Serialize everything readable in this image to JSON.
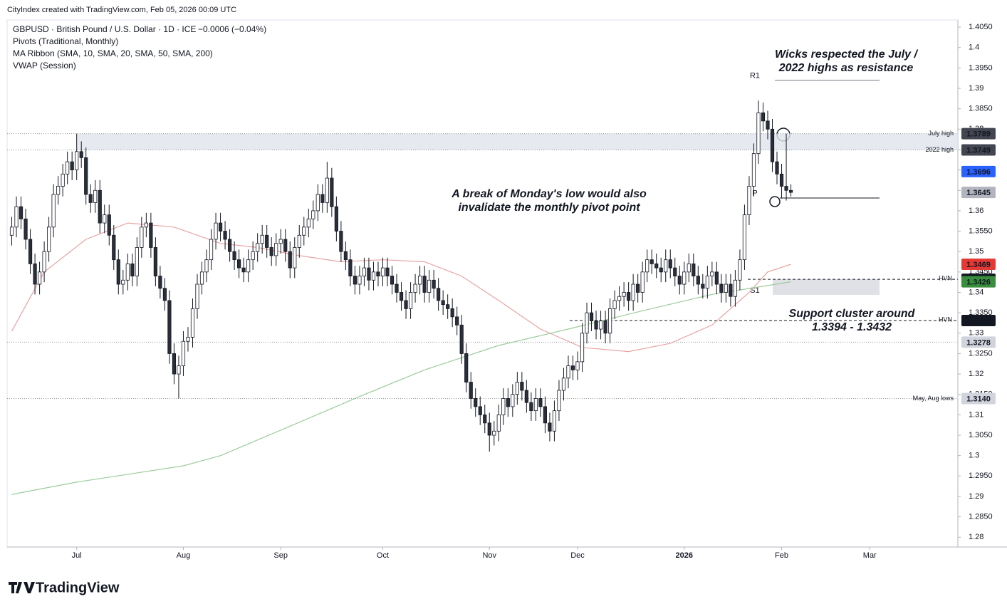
{
  "header": "CityIndex created with TradingView.com, Feb 05, 2026 00:09 UTC",
  "footer": "TradingView",
  "chart_data": {
    "type": "candlestick",
    "title": "GBPUSD · British Pound / U.S. Dollar · 1D · ICE",
    "change": "−0.0006 (−0.04%)",
    "indicators": [
      "Pivots (Traditional, Monthly)",
      "MA Ribbon (SMA, 10, SMA, 20, SMA, 50, SMA, 200)",
      "VWAP (Session)"
    ],
    "up_color": "#ffffff",
    "down_color": "#2a2e39",
    "border_color": "#131722",
    "open": [
      1.354,
      1.356,
      1.361,
      1.358,
      1.353,
      1.347,
      1.342,
      1.345,
      1.35,
      1.356,
      1.364,
      1.366,
      1.369,
      1.372,
      1.37,
      1.3745,
      1.373,
      1.364,
      1.362,
      1.365,
      1.357,
      1.359,
      1.354,
      1.348,
      1.342,
      1.343,
      1.347,
      1.344,
      1.351,
      1.356,
      1.357,
      1.351,
      1.344,
      1.341,
      1.338,
      1.325,
      1.32,
      1.322,
      1.328,
      1.329,
      1.336,
      1.342,
      1.345,
      1.348,
      1.353,
      1.357,
      1.355,
      1.353,
      1.35,
      1.348,
      1.346,
      1.345,
      1.348,
      1.35,
      1.352,
      1.354,
      1.351,
      1.349,
      1.352,
      1.353,
      1.35,
      1.346,
      1.351,
      1.354,
      1.356,
      1.358,
      1.36,
      1.364,
      1.362,
      1.368,
      1.361,
      1.355,
      1.35,
      1.348,
      1.344,
      1.342,
      1.344,
      1.346,
      1.343,
      1.345,
      1.344,
      1.346,
      1.344,
      1.342,
      1.34,
      1.338,
      1.336,
      1.34,
      1.342,
      1.344,
      1.34,
      1.343,
      1.341,
      1.338,
      1.337,
      1.336,
      1.334,
      1.332,
      1.325,
      1.318,
      1.314,
      1.312,
      1.31,
      1.308,
      1.305,
      1.306,
      1.31,
      1.314,
      1.312,
      1.315,
      1.318,
      1.316,
      1.313,
      1.311,
      1.314,
      1.312,
      1.308,
      1.306,
      1.311,
      1.316,
      1.319,
      1.322,
      1.321,
      1.323,
      1.33,
      1.335,
      1.333,
      1.331,
      1.333,
      1.33,
      1.336,
      1.338,
      1.339,
      1.34,
      1.338,
      1.342,
      1.34,
      1.345,
      1.348,
      1.347,
      1.346,
      1.345,
      1.348,
      1.346,
      1.344,
      1.342,
      1.345,
      1.347,
      1.344,
      1.342,
      1.341,
      1.344,
      1.345,
      1.342,
      1.34,
      1.342,
      1.339,
      1.343,
      1.348,
      1.359,
      1.366,
      1.374,
      1.384,
      1.382,
      1.38,
      1.372,
      1.369,
      1.366,
      1.365
    ],
    "high": [
      1.3585,
      1.3635,
      1.3635,
      1.3605,
      1.3555,
      1.3495,
      1.3475,
      1.3525,
      1.3585,
      1.3665,
      1.3685,
      1.3715,
      1.3745,
      1.3745,
      1.3789,
      1.377,
      1.3755,
      1.3665,
      1.3675,
      1.3675,
      1.3615,
      1.3615,
      1.3565,
      1.3505,
      1.3455,
      1.3495,
      1.3495,
      1.3535,
      1.3585,
      1.3595,
      1.3595,
      1.3535,
      1.3465,
      1.3435,
      1.3405,
      1.3275,
      1.3245,
      1.3305,
      1.3315,
      1.3385,
      1.3445,
      1.3475,
      1.3505,
      1.3555,
      1.3595,
      1.3595,
      1.3575,
      1.3555,
      1.3525,
      1.3505,
      1.3485,
      1.3505,
      1.3525,
      1.3545,
      1.3565,
      1.3565,
      1.3535,
      1.3545,
      1.3555,
      1.3555,
      1.3525,
      1.3535,
      1.3565,
      1.3585,
      1.3605,
      1.3625,
      1.3665,
      1.3665,
      1.372,
      1.3705,
      1.3635,
      1.3575,
      1.3525,
      1.3505,
      1.3465,
      1.3465,
      1.3485,
      1.3485,
      1.3475,
      1.3475,
      1.3485,
      1.3485,
      1.3465,
      1.3445,
      1.3425,
      1.3405,
      1.3425,
      1.3445,
      1.3465,
      1.3465,
      1.3455,
      1.3455,
      1.3435,
      1.3405,
      1.3395,
      1.3385,
      1.3365,
      1.3345,
      1.3275,
      1.3205,
      1.3165,
      1.3145,
      1.3125,
      1.3105,
      1.3085,
      1.3125,
      1.3165,
      1.3165,
      1.3175,
      1.3205,
      1.3205,
      1.3185,
      1.3155,
      1.3165,
      1.3165,
      1.3145,
      1.3105,
      1.3135,
      1.3185,
      1.3215,
      1.3245,
      1.3245,
      1.3255,
      1.3325,
      1.3375,
      1.3375,
      1.3355,
      1.3355,
      1.3355,
      1.3385,
      1.3405,
      1.3415,
      1.3425,
      1.3425,
      1.3445,
      1.3445,
      1.3475,
      1.3505,
      1.3505,
      1.3495,
      1.3485,
      1.3505,
      1.3505,
      1.3485,
      1.3465,
      1.3475,
      1.3495,
      1.3495,
      1.3465,
      1.3445,
      1.3465,
      1.3475,
      1.3475,
      1.3445,
      1.3445,
      1.3445,
      1.3455,
      1.3505,
      1.3615,
      1.3685,
      1.3765,
      1.387,
      1.3865,
      1.3845,
      1.3825,
      1.3745,
      1.3715,
      1.3789,
      1.3665
    ],
    "low": [
      1.3515,
      1.3535,
      1.3555,
      1.3505,
      1.3445,
      1.3395,
      1.3395,
      1.3425,
      1.3475,
      1.3535,
      1.3615,
      1.3635,
      1.3665,
      1.3675,
      1.3675,
      1.3705,
      1.3615,
      1.3595,
      1.3595,
      1.3545,
      1.3545,
      1.3515,
      1.3455,
      1.3395,
      1.3395,
      1.3405,
      1.3415,
      1.3415,
      1.3485,
      1.3535,
      1.3485,
      1.3415,
      1.3385,
      1.3355,
      1.3225,
      1.3175,
      1.314,
      1.3195,
      1.3255,
      1.3265,
      1.3335,
      1.3395,
      1.3425,
      1.3455,
      1.3505,
      1.3525,
      1.3505,
      1.3475,
      1.3455,
      1.3435,
      1.3425,
      1.3425,
      1.3455,
      1.3475,
      1.3495,
      1.3485,
      1.3465,
      1.3465,
      1.3495,
      1.3475,
      1.3435,
      1.3435,
      1.3485,
      1.3515,
      1.3535,
      1.3555,
      1.3575,
      1.3595,
      1.3595,
      1.3585,
      1.3525,
      1.3475,
      1.3455,
      1.3415,
      1.3395,
      1.3395,
      1.3415,
      1.3405,
      1.3405,
      1.3415,
      1.3415,
      1.3415,
      1.3395,
      1.3375,
      1.3355,
      1.3335,
      1.3335,
      1.3375,
      1.3395,
      1.3375,
      1.3375,
      1.3385,
      1.3355,
      1.3345,
      1.3335,
      1.3315,
      1.3295,
      1.3225,
      1.3155,
      1.3115,
      1.3095,
      1.3075,
      1.3055,
      1.301,
      1.3025,
      1.3035,
      1.3075,
      1.3095,
      1.3095,
      1.3125,
      1.3135,
      1.3105,
      1.3085,
      1.3085,
      1.3095,
      1.3055,
      1.3035,
      1.3035,
      1.3085,
      1.3135,
      1.3165,
      1.3185,
      1.3185,
      1.3205,
      1.3275,
      1.3305,
      1.3285,
      1.3285,
      1.3275,
      1.3275,
      1.3335,
      1.3355,
      1.3365,
      1.3355,
      1.3355,
      1.3375,
      1.3375,
      1.3425,
      1.3445,
      1.3435,
      1.3425,
      1.3425,
      1.3435,
      1.3415,
      1.3395,
      1.3395,
      1.3425,
      1.3415,
      1.3395,
      1.3385,
      1.3385,
      1.3415,
      1.3395,
      1.3375,
      1.3375,
      1.3365,
      1.3365,
      1.3405,
      1.3455,
      1.3565,
      1.3635,
      1.3715,
      1.3795,
      1.3775,
      1.3695,
      1.3665,
      1.363,
      1.3625,
      1.3635
    ],
    "close": [
      1.356,
      1.361,
      1.358,
      1.353,
      1.347,
      1.342,
      1.345,
      1.35,
      1.356,
      1.364,
      1.366,
      1.369,
      1.372,
      1.37,
      1.3745,
      1.373,
      1.364,
      1.362,
      1.365,
      1.357,
      1.359,
      1.354,
      1.348,
      1.342,
      1.343,
      1.347,
      1.344,
      1.351,
      1.356,
      1.357,
      1.351,
      1.344,
      1.341,
      1.338,
      1.325,
      1.32,
      1.322,
      1.328,
      1.329,
      1.336,
      1.342,
      1.345,
      1.348,
      1.353,
      1.357,
      1.355,
      1.353,
      1.35,
      1.348,
      1.346,
      1.345,
      1.348,
      1.35,
      1.352,
      1.354,
      1.351,
      1.349,
      1.352,
      1.353,
      1.35,
      1.346,
      1.351,
      1.354,
      1.356,
      1.358,
      1.36,
      1.364,
      1.362,
      1.368,
      1.361,
      1.355,
      1.35,
      1.348,
      1.344,
      1.342,
      1.344,
      1.346,
      1.343,
      1.345,
      1.344,
      1.346,
      1.344,
      1.342,
      1.34,
      1.338,
      1.336,
      1.34,
      1.342,
      1.344,
      1.34,
      1.343,
      1.341,
      1.338,
      1.337,
      1.336,
      1.334,
      1.332,
      1.325,
      1.318,
      1.314,
      1.312,
      1.31,
      1.308,
      1.305,
      1.306,
      1.31,
      1.314,
      1.312,
      1.315,
      1.318,
      1.316,
      1.313,
      1.311,
      1.314,
      1.312,
      1.308,
      1.306,
      1.311,
      1.316,
      1.319,
      1.322,
      1.321,
      1.323,
      1.33,
      1.335,
      1.333,
      1.331,
      1.333,
      1.33,
      1.336,
      1.338,
      1.339,
      1.34,
      1.338,
      1.342,
      1.34,
      1.345,
      1.348,
      1.347,
      1.346,
      1.345,
      1.348,
      1.346,
      1.344,
      1.342,
      1.345,
      1.347,
      1.344,
      1.342,
      1.341,
      1.344,
      1.345,
      1.342,
      1.34,
      1.342,
      1.339,
      1.343,
      1.348,
      1.359,
      1.366,
      1.374,
      1.384,
      1.382,
      1.38,
      1.372,
      1.369,
      1.366,
      1.365,
      1.3645
    ],
    "ma_lines": [
      {
        "color": "#e8a3a3",
        "x": [
          0,
          7,
          16,
          25,
          35,
          45,
          53,
          62,
          71,
          80,
          89,
          97,
          105,
          114,
          123,
          133,
          142,
          151,
          159,
          163,
          168
        ],
        "values": [
          1.3305,
          1.345,
          1.353,
          1.357,
          1.356,
          1.352,
          1.351,
          1.349,
          1.3475,
          1.348,
          1.3475,
          1.344,
          1.338,
          1.331,
          1.3265,
          1.3255,
          1.3275,
          1.332,
          1.34,
          1.345,
          1.3469
        ]
      },
      {
        "color": "#9ccc9c",
        "x": [
          0,
          14,
          37,
          45,
          60,
          74,
          89,
          105,
          120,
          136,
          151,
          168
        ],
        "values": [
          1.2905,
          1.2935,
          1.2975,
          1.3,
          1.3072,
          1.314,
          1.321,
          1.327,
          1.331,
          1.3355,
          1.3395,
          1.3426
        ]
      }
    ],
    "xlim": [
      -1,
      204
    ],
    "xticks": [
      {
        "value": 14,
        "label": "Jul"
      },
      {
        "value": 37,
        "label": "Aug"
      },
      {
        "value": 58,
        "label": "Sep"
      },
      {
        "value": 80,
        "label": "Oct"
      },
      {
        "value": 103,
        "label": "Nov"
      },
      {
        "value": 122,
        "label": "Dec"
      },
      {
        "value": 145,
        "label": "2026"
      },
      {
        "value": 166,
        "label": "Feb"
      },
      {
        "value": 185,
        "label": "Mar"
      }
    ],
    "ylim": [
      1.2776,
      1.4099
    ],
    "yticks": [
      {
        "value": 1.405,
        "label": "1.4050"
      },
      1.4,
      {
        "value": 1.395,
        "label": "1.3950"
      },
      1.39,
      {
        "value": 1.385,
        "label": "1.3850"
      },
      1.38,
      {
        "value": 1.375,
        "label": "1.3750"
      },
      1.37,
      {
        "value": 1.365,
        "label": "1.3650"
      },
      1.36,
      {
        "value": 1.355,
        "label": "1.3550"
      },
      1.35,
      {
        "value": 1.345,
        "label": "1.3450"
      },
      1.34,
      {
        "value": 1.335,
        "label": "1.3350"
      },
      1.33,
      {
        "value": 1.325,
        "label": "1.3250"
      },
      1.32,
      {
        "value": 1.315,
        "label": "1.3150"
      },
      1.31,
      {
        "value": 1.305,
        "label": "1.3050"
      },
      1.3,
      {
        "value": 1.295,
        "label": "1.2950"
      },
      1.29,
      {
        "value": 1.285,
        "label": "1.2850"
      },
      1.28
    ],
    "price_tags": [
      {
        "value": 1.3789,
        "label": "1.3789",
        "color": "#434651"
      },
      {
        "value": 1.3749,
        "label": "1.3749",
        "color": "#434651"
      },
      {
        "value": 1.3696,
        "label": "1.3696",
        "color": "#2962ff"
      },
      {
        "value": 1.3645,
        "label": "1.3645",
        "color": "#b2b5be"
      },
      {
        "value": 1.3469,
        "label": "1.3469",
        "color": "#e53935"
      },
      {
        "value": 1.3432,
        "label": "1.3432",
        "color": "#131722"
      },
      {
        "value": 1.3426,
        "label": "1.3426",
        "color": "#388e3c"
      },
      {
        "value": 1.3331,
        "label": "1.3331",
        "color": "#131722"
      },
      {
        "value": 1.3278,
        "label": "1.3278",
        "color": "#d1d4dc"
      },
      {
        "value": 1.314,
        "label": "1.3140",
        "color": "#d1d4dc"
      }
    ],
    "levels": [
      {
        "value": 1.3789,
        "label": "July high"
      },
      {
        "value": 1.3749,
        "label": "2022 high"
      },
      {
        "value": 1.3278
      },
      {
        "value": 1.314,
        "label": "May, Aug lows"
      }
    ],
    "hvn": [
      {
        "value": 1.3432,
        "label": "HVN"
      },
      {
        "value": 1.3331,
        "label": "HVN"
      }
    ],
    "pivots": [
      {
        "value": 1.392,
        "label": "R1"
      },
      {
        "value": 1.3632,
        "label": "P"
      },
      {
        "value": 1.3394,
        "label": "S1"
      }
    ],
    "support_zone": {
      "low": 1.3394,
      "high": 1.3432
    },
    "annotations": [
      "Wicks respected the July /",
      "2022 highs as resistance",
      "A break of Monday's low would also",
      "invalidate the monthly pivot point",
      "Support cluster around",
      "1.3394 - 1.3432"
    ]
  }
}
